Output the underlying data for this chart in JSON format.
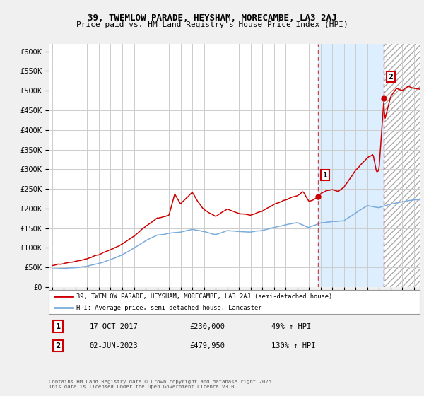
{
  "title1": "39, TWEMLOW PARADE, HEYSHAM, MORECAMBE, LA3 2AJ",
  "title2": "Price paid vs. HM Land Registry's House Price Index (HPI)",
  "ylim": [
    0,
    620000
  ],
  "yticks": [
    0,
    50000,
    100000,
    150000,
    200000,
    250000,
    300000,
    350000,
    400000,
    450000,
    500000,
    550000,
    600000
  ],
  "ytick_labels": [
    "£0",
    "£50K",
    "£100K",
    "£150K",
    "£200K",
    "£250K",
    "£300K",
    "£350K",
    "£400K",
    "£450K",
    "£500K",
    "£550K",
    "£600K"
  ],
  "xlim_start": 1994.7,
  "xlim_end": 2026.5,
  "purchase1_x": 2017.79,
  "purchase1_y": 230000,
  "purchase2_x": 2023.42,
  "purchase2_y": 479950,
  "vline1_x": 2017.79,
  "vline2_x": 2023.42,
  "shade_start": 2017.79,
  "shade_end": 2023.42,
  "legend_line1": "39, TWEMLOW PARADE, HEYSHAM, MORECAMBE, LA3 2AJ (semi-detached house)",
  "legend_line2": "HPI: Average price, semi-detached house, Lancaster",
  "annotation1_date": "17-OCT-2017",
  "annotation1_price": "£230,000",
  "annotation1_hpi": "49% ↑ HPI",
  "annotation2_date": "02-JUN-2023",
  "annotation2_price": "£479,950",
  "annotation2_hpi": "130% ↑ HPI",
  "footer": "Contains HM Land Registry data © Crown copyright and database right 2025.\nThis data is licensed under the Open Government Licence v3.0.",
  "line_color_red": "#cc0000",
  "line_color_blue": "#7aabdb",
  "shade_color": "#ddeeff",
  "background_color": "#f0f0f0",
  "plot_bg_color": "#ffffff"
}
